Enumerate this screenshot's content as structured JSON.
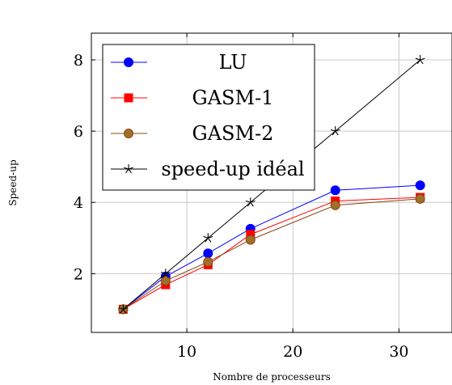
{
  "chart_data": {
    "type": "line",
    "xlabel": "Nombre de processeurs",
    "ylabel": "Speed-up",
    "xlim": [
      1,
      35
    ],
    "ylim": [
      0.35,
      8.75
    ],
    "xticks": [
      10,
      20,
      30
    ],
    "yticks": [
      2,
      4,
      6,
      8
    ],
    "grid": true,
    "legend_position": "top-left",
    "series": [
      {
        "name": "LU",
        "color": "#0000ff",
        "marker": "circle",
        "marker_color": "#0000ff",
        "x": [
          4,
          8,
          12,
          16,
          24,
          32
        ],
        "y": [
          1.0,
          1.92,
          2.57,
          3.26,
          4.34,
          4.48
        ]
      },
      {
        "name": "GASM-1",
        "color": "#ff0000",
        "marker": "square",
        "marker_color": "#ff0000",
        "x": [
          4,
          8,
          12,
          16,
          24,
          32
        ],
        "y": [
          1.0,
          1.69,
          2.25,
          3.1,
          4.04,
          4.14
        ]
      },
      {
        "name": "GASM-2",
        "color": "#8b4513",
        "marker": "circle",
        "marker_color": "#a0702a",
        "x": [
          4,
          8,
          12,
          16,
          24,
          32
        ],
        "y": [
          1.0,
          1.8,
          2.33,
          2.95,
          3.92,
          4.1
        ]
      },
      {
        "name": "speed-up idéal",
        "color": "#000000",
        "marker": "star",
        "marker_color": "#000000",
        "x": [
          4,
          8,
          12,
          16,
          24,
          32
        ],
        "y": [
          1,
          2,
          3,
          4,
          6,
          8
        ]
      }
    ]
  }
}
